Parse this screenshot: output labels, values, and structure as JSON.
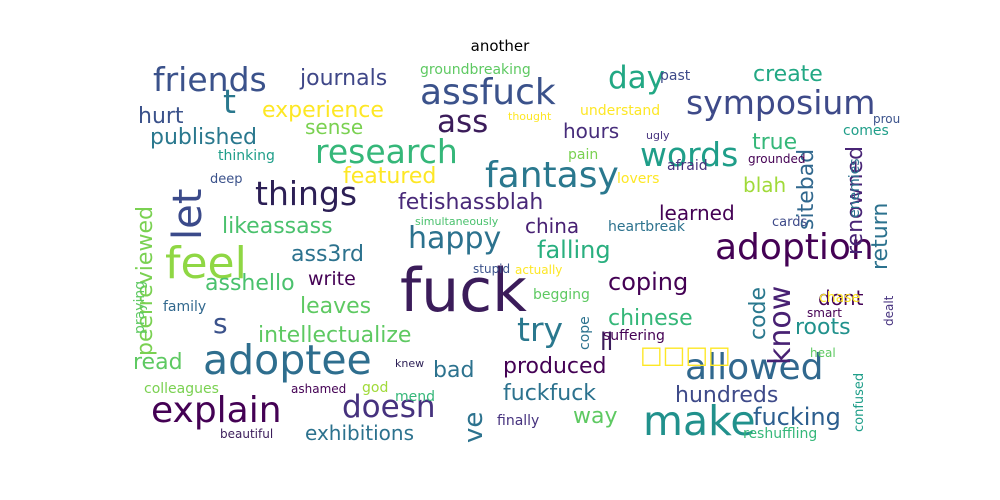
{
  "title": "another",
  "words": [
    {
      "text": "fuck",
      "color": "#3b1c5a"
    },
    {
      "text": "adoptee",
      "color": "#2e6e8e"
    },
    {
      "text": "make",
      "color": "#21918c"
    },
    {
      "text": "feel",
      "color": "#8fd744"
    },
    {
      "text": "let",
      "color": "#3b4a8a"
    },
    {
      "text": "assfuck",
      "color": "#3b528b"
    },
    {
      "text": "fantasy",
      "color": "#2a788e"
    },
    {
      "text": "adoption",
      "color": "#440154"
    },
    {
      "text": "allowed",
      "color": "#31688e"
    },
    {
      "text": "explain",
      "color": "#440154"
    },
    {
      "text": "symposium",
      "color": "#3e4a89"
    },
    {
      "text": "friends",
      "color": "#3b528b"
    },
    {
      "text": "things",
      "color": "#2c1f55"
    },
    {
      "text": "research",
      "color": "#35b779"
    },
    {
      "text": "words",
      "color": "#1f9e89"
    },
    {
      "text": "happy",
      "color": "#2c728e"
    },
    {
      "text": "doesn",
      "color": "#46327e"
    },
    {
      "text": "try",
      "color": "#2a788e"
    },
    {
      "text": "day",
      "color": "#22a884"
    },
    {
      "text": "ass",
      "color": "#3b1c5a"
    },
    {
      "text": "t",
      "color": "#2a788e"
    },
    {
      "text": "know",
      "color": "#482173"
    },
    {
      "text": "fetishassblah",
      "color": "#482878"
    },
    {
      "text": "falling",
      "color": "#29af7f"
    },
    {
      "text": "coping",
      "color": "#440154"
    },
    {
      "text": "fuckfuck",
      "color": "#2c728e"
    },
    {
      "text": "hundreds",
      "color": "#3e4a89"
    },
    {
      "text": "fucking",
      "color": "#2c5e8e"
    },
    {
      "text": "experience",
      "color": "#fde725"
    },
    {
      "text": "featured",
      "color": "#fde725"
    },
    {
      "text": "published",
      "color": "#2a788e"
    },
    {
      "text": "hurt",
      "color": "#3b528b"
    },
    {
      "text": "journals",
      "color": "#3f4788"
    },
    {
      "text": "sense",
      "color": "#7ad151"
    },
    {
      "text": "hours",
      "color": "#472d7b"
    },
    {
      "text": "create",
      "color": "#22a884"
    },
    {
      "text": "true",
      "color": "#35b779"
    },
    {
      "text": "blah",
      "color": "#a0da39"
    },
    {
      "text": "learned",
      "color": "#440154"
    },
    {
      "text": "sitebad",
      "color": "#31688e"
    },
    {
      "text": "renowned",
      "color": "#482475"
    },
    {
      "text": "return",
      "color": "#2c728e"
    },
    {
      "text": "code",
      "color": "#2a788e"
    },
    {
      "text": "likeassass",
      "color": "#4ac16d"
    },
    {
      "text": "ass3rd",
      "color": "#2c728e"
    },
    {
      "text": "asshello",
      "color": "#4ac16d"
    },
    {
      "text": "write",
      "color": "#440154"
    },
    {
      "text": "leaves",
      "color": "#5ec962"
    },
    {
      "text": "china",
      "color": "#482173"
    },
    {
      "text": "intellectualize",
      "color": "#5ec962"
    },
    {
      "text": "chinese",
      "color": "#35b779"
    },
    {
      "text": "roots",
      "color": "#21918c"
    },
    {
      "text": "dont",
      "color": "#440154"
    },
    {
      "text": "ll",
      "color": "#3b1c5a"
    },
    {
      "text": "s",
      "color": "#3b528b"
    },
    {
      "text": "read",
      "color": "#5ec962"
    },
    {
      "text": "bad",
      "color": "#2c728e"
    },
    {
      "text": "produced",
      "color": "#440154"
    },
    {
      "text": "ve",
      "color": "#2c728e"
    },
    {
      "text": "way",
      "color": "#5ec962"
    },
    {
      "text": "exhibitions",
      "color": "#2c728e"
    },
    {
      "text": "peerreviewed",
      "color": "#7ad151"
    },
    {
      "text": "groundbreaking",
      "color": "#5ec962"
    },
    {
      "text": "understand",
      "color": "#fde725"
    },
    {
      "text": "past",
      "color": "#3e4a89"
    },
    {
      "text": "thinking",
      "color": "#1f9e89"
    },
    {
      "text": "deep",
      "color": "#3b528b"
    },
    {
      "text": "pain",
      "color": "#7ad151"
    },
    {
      "text": "lovers",
      "color": "#fde725"
    },
    {
      "text": "afraid",
      "color": "#46327e"
    },
    {
      "text": "heartbreak",
      "color": "#2c728e"
    },
    {
      "text": "simultaneously",
      "color": "#4ac16d"
    },
    {
      "text": "actually",
      "color": "#fde725"
    },
    {
      "text": "stupid",
      "color": "#3b528b"
    },
    {
      "text": "begging",
      "color": "#5ec962"
    },
    {
      "text": "family",
      "color": "#31688e"
    },
    {
      "text": "praying",
      "color": "#5ec962"
    },
    {
      "text": "colleagues",
      "color": "#7ad151"
    },
    {
      "text": "ashamed",
      "color": "#440154"
    },
    {
      "text": "god",
      "color": "#a0da39"
    },
    {
      "text": "mend",
      "color": "#35b779"
    },
    {
      "text": "knew",
      "color": "#2c1f55"
    },
    {
      "text": "finally",
      "color": "#46327e"
    },
    {
      "text": "beautiful",
      "color": "#3b1c5a"
    },
    {
      "text": "reshuffling",
      "color": "#35b779"
    },
    {
      "text": "cope",
      "color": "#2c728e"
    },
    {
      "text": "suffering",
      "color": "#440154"
    },
    {
      "text": "grounded",
      "color": "#440154"
    },
    {
      "text": "comes",
      "color": "#1f9e89"
    },
    {
      "text": "cards",
      "color": "#3e4a89"
    },
    {
      "text": "enemies",
      "color": "#2c728e"
    },
    {
      "text": "chase",
      "color": "#fde725"
    },
    {
      "text": "smart",
      "color": "#440154"
    },
    {
      "text": "dealt",
      "color": "#46327e"
    },
    {
      "text": "heal",
      "color": "#5ec962"
    },
    {
      "text": "confused",
      "color": "#1f9e89"
    },
    {
      "text": "proud",
      "color": "#3b528b"
    },
    {
      "text": "thought",
      "color": "#fde725"
    },
    {
      "text": "ugly",
      "color": "#46327e"
    },
    {
      "text": "□□□□",
      "color": "#fde725"
    }
  ]
}
